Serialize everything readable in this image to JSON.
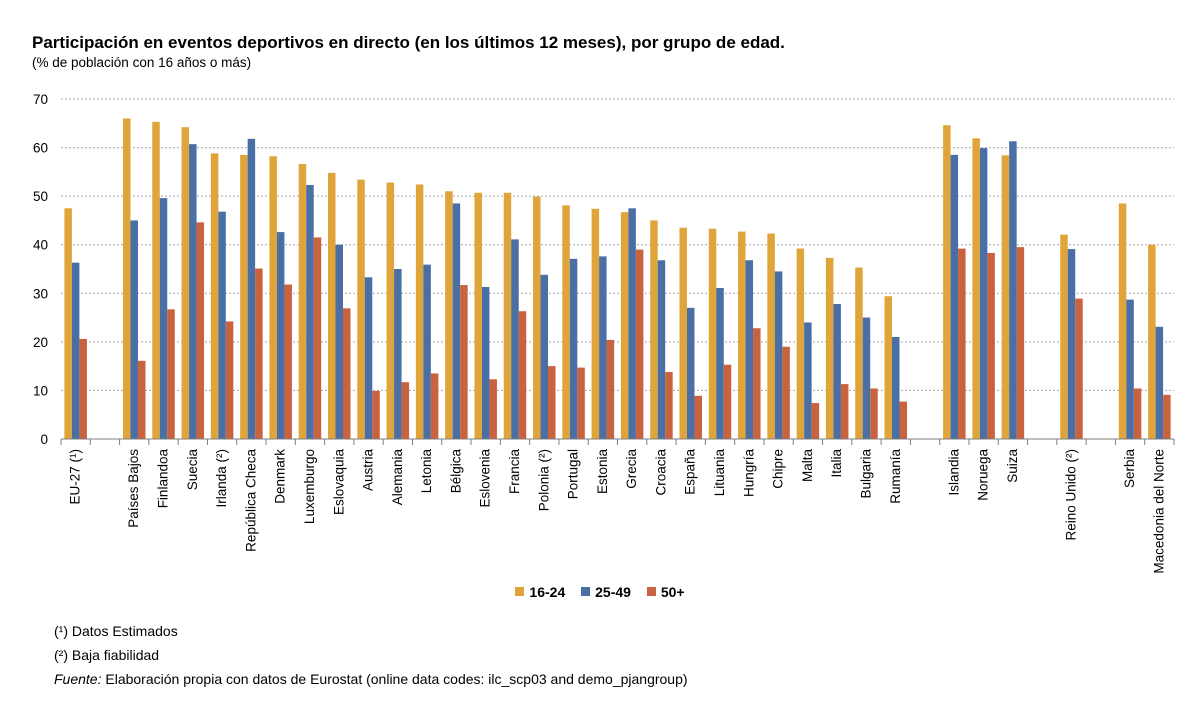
{
  "chart_data": {
    "type": "bar",
    "title": "Participación en eventos deportivos en directo (en los últimos 12 meses), por grupo de edad.",
    "subtitle": "(% de población con 16 años o más)",
    "xlabel": "",
    "ylabel": "",
    "ylim": [
      0,
      70
    ],
    "yticks": [
      0,
      10,
      20,
      30,
      40,
      50,
      60,
      70
    ],
    "grid": true,
    "legend_position": "bottom",
    "categories": [
      "EU-27 (¹)",
      "",
      "Países Bajos",
      "Finlandoa",
      "Suecia",
      "Irlanda (²)",
      "República Checa",
      "Denmark",
      "Luxemburgo",
      "Eslovaquia",
      "Austria",
      "Alemania",
      "Letonia",
      "Bélgica",
      "Eslovenia",
      "Francia",
      "Polonia (²)",
      "Portugal",
      "Estonia",
      "Grecia",
      "Croacia",
      "España",
      "Lituania",
      "Hungría",
      "Chipre",
      "Malta",
      "Italia",
      "Bulgaria",
      "Rumanía",
      "",
      "Islandia",
      "Noruega",
      "Suiza",
      "",
      "Reino Unido (²)",
      "",
      "Serbia",
      "Macedonia del Norte"
    ],
    "series": [
      {
        "name": "16-24",
        "color": "#E0A53A",
        "values": [
          47.5,
          null,
          66,
          65.3,
          64.2,
          58.8,
          58.5,
          58.2,
          56.6,
          54.8,
          53.4,
          52.8,
          52.4,
          51.0,
          50.7,
          50.7,
          49.9,
          48.1,
          47.4,
          46.7,
          45.0,
          43.5,
          43.3,
          42.7,
          42.3,
          39.2,
          37.3,
          35.3,
          29.4,
          null,
          64.6,
          61.9,
          58.4,
          null,
          42.1,
          null,
          48.5,
          40.0
        ]
      },
      {
        "name": "25-49",
        "color": "#4A6FA5",
        "values": [
          36.3,
          null,
          45.0,
          49.6,
          60.7,
          46.8,
          61.8,
          42.6,
          52.3,
          40.0,
          33.3,
          35.0,
          35.9,
          48.5,
          31.3,
          41.1,
          33.8,
          37.1,
          37.6,
          47.5,
          36.8,
          27.0,
          31.1,
          36.8,
          34.5,
          24.0,
          27.8,
          25.0,
          21.0,
          null,
          58.5,
          59.9,
          61.3,
          null,
          39.1,
          null,
          28.7,
          23.1
        ]
      },
      {
        "name": "50+",
        "color": "#C8623F",
        "values": [
          20.6,
          null,
          16.1,
          26.7,
          44.6,
          24.2,
          35.1,
          31.8,
          41.5,
          26.9,
          9.9,
          11.7,
          13.5,
          31.7,
          12.3,
          26.3,
          15.0,
          14.7,
          20.4,
          39.0,
          13.8,
          8.9,
          15.3,
          22.8,
          19.0,
          7.4,
          11.3,
          10.4,
          7.7,
          null,
          39.2,
          38.3,
          39.5,
          null,
          28.9,
          null,
          10.4,
          9.1
        ]
      }
    ]
  },
  "legend": {
    "items": [
      "16-24",
      "25-49",
      "50+"
    ]
  },
  "notes": {
    "note1": "(¹) Datos Estimados",
    "note2": "(²) Baja fiabilidad",
    "source_label": "Fuente:",
    "source_text": " Elaboración propia con datos de Eurostat (online data codes: ilc_scp03 and demo_pjangroup)"
  }
}
